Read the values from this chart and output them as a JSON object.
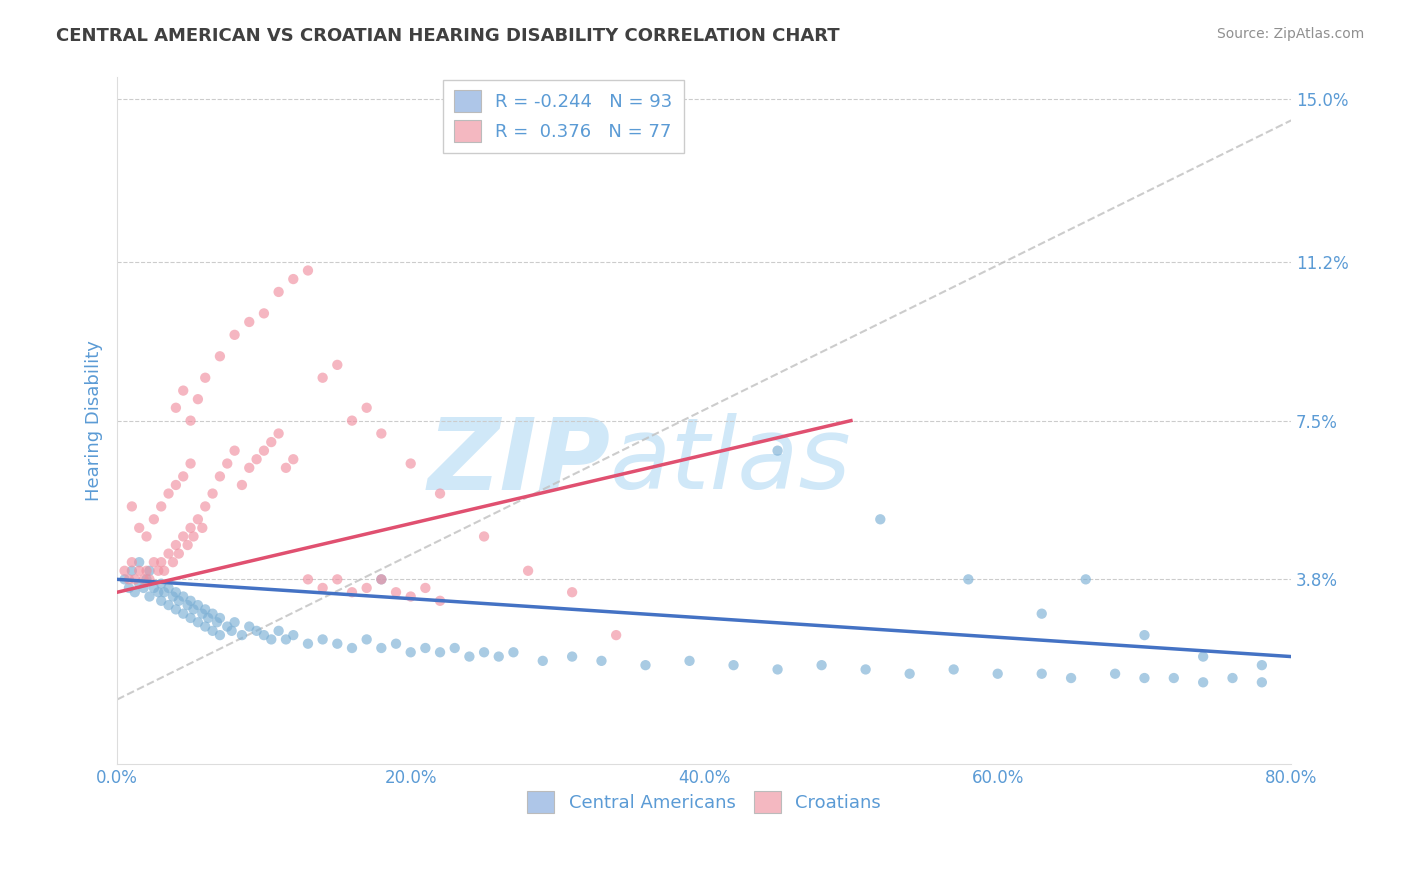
{
  "title": "CENTRAL AMERICAN VS CROATIAN HEARING DISABILITY CORRELATION CHART",
  "source": "Source: ZipAtlas.com",
  "ylabel": "Hearing Disability",
  "xlim": [
    0.0,
    0.8
  ],
  "ylim": [
    -0.005,
    0.155
  ],
  "yticks": [
    0.038,
    0.075,
    0.112,
    0.15
  ],
  "ytick_labels": [
    "3.8%",
    "7.5%",
    "11.2%",
    "15.0%"
  ],
  "xtick_labels": [
    "0.0%",
    "",
    "20.0%",
    "",
    "40.0%",
    "",
    "60.0%",
    "",
    "80.0%"
  ],
  "xticks": [
    0.0,
    0.1,
    0.2,
    0.3,
    0.4,
    0.5,
    0.6,
    0.7,
    0.8
  ],
  "blue_label": "Central Americans",
  "pink_label": "Croatians",
  "blue_R": -0.244,
  "blue_N": 93,
  "pink_R": 0.376,
  "pink_N": 77,
  "blue_legend_color": "#aec6e8",
  "pink_legend_color": "#f4b8c1",
  "blue_line_color": "#4472c4",
  "pink_line_color": "#e05070",
  "blue_dot_color": "#7bafd4",
  "pink_dot_color": "#f090a0",
  "grid_color": "#cccccc",
  "title_color": "#404040",
  "axis_label_color": "#5b9bd5",
  "source_color": "#909090",
  "background_color": "#ffffff",
  "gray_line_color": "#c0c0c0",
  "blue_scatter_x": [
    0.005,
    0.008,
    0.01,
    0.012,
    0.015,
    0.015,
    0.018,
    0.02,
    0.022,
    0.022,
    0.025,
    0.028,
    0.03,
    0.03,
    0.032,
    0.035,
    0.035,
    0.038,
    0.04,
    0.04,
    0.042,
    0.045,
    0.045,
    0.048,
    0.05,
    0.05,
    0.052,
    0.055,
    0.055,
    0.058,
    0.06,
    0.06,
    0.062,
    0.065,
    0.065,
    0.068,
    0.07,
    0.07,
    0.075,
    0.078,
    0.08,
    0.085,
    0.09,
    0.095,
    0.1,
    0.105,
    0.11,
    0.115,
    0.12,
    0.13,
    0.14,
    0.15,
    0.16,
    0.17,
    0.18,
    0.19,
    0.2,
    0.21,
    0.22,
    0.23,
    0.24,
    0.25,
    0.26,
    0.27,
    0.29,
    0.31,
    0.33,
    0.36,
    0.39,
    0.42,
    0.45,
    0.48,
    0.51,
    0.54,
    0.57,
    0.6,
    0.63,
    0.65,
    0.68,
    0.7,
    0.72,
    0.74,
    0.76,
    0.78,
    0.18,
    0.45,
    0.52,
    0.58,
    0.63,
    0.66,
    0.7,
    0.74,
    0.78
  ],
  "blue_scatter_y": [
    0.038,
    0.036,
    0.04,
    0.035,
    0.037,
    0.042,
    0.036,
    0.038,
    0.034,
    0.04,
    0.036,
    0.035,
    0.037,
    0.033,
    0.035,
    0.036,
    0.032,
    0.034,
    0.035,
    0.031,
    0.033,
    0.034,
    0.03,
    0.032,
    0.033,
    0.029,
    0.031,
    0.032,
    0.028,
    0.03,
    0.031,
    0.027,
    0.029,
    0.03,
    0.026,
    0.028,
    0.029,
    0.025,
    0.027,
    0.026,
    0.028,
    0.025,
    0.027,
    0.026,
    0.025,
    0.024,
    0.026,
    0.024,
    0.025,
    0.023,
    0.024,
    0.023,
    0.022,
    0.024,
    0.022,
    0.023,
    0.021,
    0.022,
    0.021,
    0.022,
    0.02,
    0.021,
    0.02,
    0.021,
    0.019,
    0.02,
    0.019,
    0.018,
    0.019,
    0.018,
    0.017,
    0.018,
    0.017,
    0.016,
    0.017,
    0.016,
    0.016,
    0.015,
    0.016,
    0.015,
    0.015,
    0.014,
    0.015,
    0.014,
    0.038,
    0.068,
    0.052,
    0.038,
    0.03,
    0.038,
    0.025,
    0.02,
    0.018
  ],
  "pink_scatter_x": [
    0.005,
    0.008,
    0.01,
    0.01,
    0.012,
    0.015,
    0.015,
    0.018,
    0.02,
    0.02,
    0.022,
    0.025,
    0.025,
    0.028,
    0.03,
    0.03,
    0.032,
    0.035,
    0.035,
    0.038,
    0.04,
    0.04,
    0.042,
    0.045,
    0.045,
    0.048,
    0.05,
    0.05,
    0.052,
    0.055,
    0.058,
    0.06,
    0.065,
    0.07,
    0.075,
    0.08,
    0.085,
    0.09,
    0.095,
    0.1,
    0.105,
    0.11,
    0.115,
    0.12,
    0.13,
    0.14,
    0.15,
    0.16,
    0.17,
    0.18,
    0.19,
    0.2,
    0.21,
    0.22,
    0.04,
    0.045,
    0.05,
    0.055,
    0.06,
    0.07,
    0.08,
    0.09,
    0.1,
    0.11,
    0.12,
    0.13,
    0.14,
    0.15,
    0.16,
    0.17,
    0.18,
    0.2,
    0.22,
    0.25,
    0.28,
    0.31,
    0.34
  ],
  "pink_scatter_y": [
    0.04,
    0.038,
    0.042,
    0.055,
    0.038,
    0.04,
    0.05,
    0.038,
    0.04,
    0.048,
    0.038,
    0.042,
    0.052,
    0.04,
    0.042,
    0.055,
    0.04,
    0.044,
    0.058,
    0.042,
    0.046,
    0.06,
    0.044,
    0.048,
    0.062,
    0.046,
    0.05,
    0.065,
    0.048,
    0.052,
    0.05,
    0.055,
    0.058,
    0.062,
    0.065,
    0.068,
    0.06,
    0.064,
    0.066,
    0.068,
    0.07,
    0.072,
    0.064,
    0.066,
    0.038,
    0.036,
    0.038,
    0.035,
    0.036,
    0.038,
    0.035,
    0.034,
    0.036,
    0.033,
    0.078,
    0.082,
    0.075,
    0.08,
    0.085,
    0.09,
    0.095,
    0.098,
    0.1,
    0.105,
    0.108,
    0.11,
    0.085,
    0.088,
    0.075,
    0.078,
    0.072,
    0.065,
    0.058,
    0.048,
    0.04,
    0.035,
    0.025
  ],
  "watermark_zip": "ZIP",
  "watermark_atlas": "atlas",
  "watermark_color": "#d0e8f8",
  "watermark_fontsize": 72
}
